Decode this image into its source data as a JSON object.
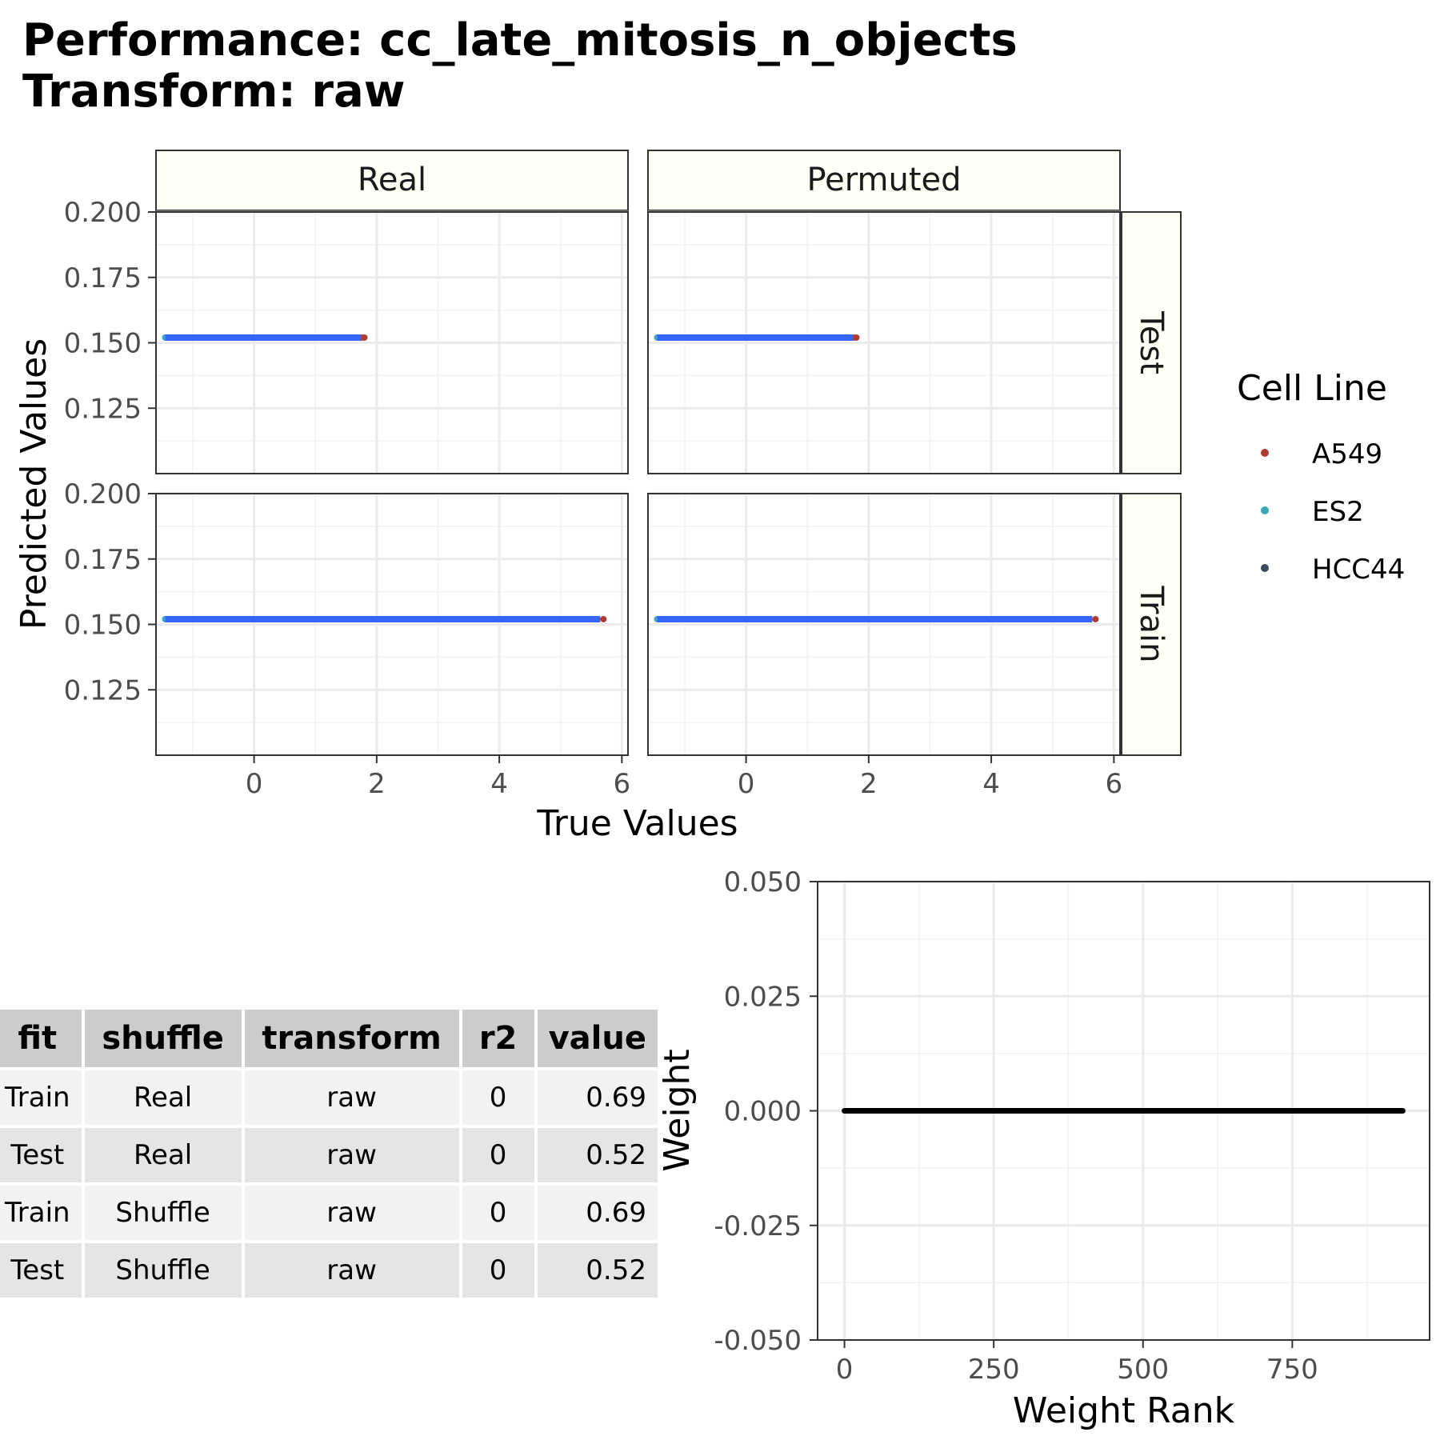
{
  "title": [
    "Performance: cc_late_mitosis_n_objects",
    "Transform: raw"
  ],
  "colors": {
    "A549": "#b03a2e",
    "ES2": "#3aa8b5",
    "HCC44": "#3d4a5c",
    "fit_line": "#3366ff"
  },
  "chart_data": [
    {
      "type": "scatter",
      "facets": {
        "columns": [
          "Real",
          "Permuted"
        ],
        "rows": [
          "Test",
          "Train"
        ]
      },
      "xlabel": "True Values",
      "ylabel": "Predicted Values",
      "xlim": [
        -1.6,
        6.1
      ],
      "ylim": [
        0.1,
        0.2
      ],
      "x_ticks": [
        0,
        2,
        4,
        6
      ],
      "y_ticks": [
        0.125,
        0.15,
        0.175,
        0.2
      ],
      "y_tick_labels": [
        "0.125",
        "0.150",
        "0.175",
        "0.200"
      ],
      "grid": true,
      "legend": {
        "title": "Cell Line",
        "entries": [
          "A549",
          "ES2",
          "HCC44"
        ],
        "position": "right"
      },
      "panels": [
        {
          "row": "Test",
          "col": "Real",
          "x_range": [
            -1.45,
            1.8
          ],
          "y": 0.152,
          "fit_line": {
            "x": [
              -1.45,
              1.8
            ],
            "y": [
              0.152,
              0.152
            ]
          }
        },
        {
          "row": "Test",
          "col": "Permuted",
          "x_range": [
            -1.45,
            1.8
          ],
          "y": 0.152,
          "fit_line": {
            "x": [
              -1.45,
              1.8
            ],
            "y": [
              0.152,
              0.152
            ]
          }
        },
        {
          "row": "Train",
          "col": "Real",
          "x_range": [
            -1.45,
            5.7
          ],
          "y": 0.152,
          "fit_line": {
            "x": [
              -1.45,
              5.7
            ],
            "y": [
              0.152,
              0.152
            ]
          }
        },
        {
          "row": "Train",
          "col": "Permuted",
          "x_range": [
            -1.45,
            5.7
          ],
          "y": 0.152,
          "fit_line": {
            "x": [
              -1.45,
              5.7
            ],
            "y": [
              0.152,
              0.152
            ]
          }
        }
      ]
    },
    {
      "type": "table",
      "columns": [
        "fit",
        "shuffle",
        "transform",
        "r2",
        "value"
      ],
      "rows": [
        [
          "Train",
          "Real",
          "raw",
          "0",
          "0.69"
        ],
        [
          "Test",
          "Real",
          "raw",
          "0",
          "0.52"
        ],
        [
          "Train",
          "Shuffle",
          "raw",
          "0",
          "0.69"
        ],
        [
          "Test",
          "Shuffle",
          "raw",
          "0",
          "0.52"
        ]
      ]
    },
    {
      "type": "line",
      "xlabel": "Weight Rank",
      "ylabel": "Weight",
      "xlim": [
        -45,
        980
      ],
      "ylim": [
        -0.05,
        0.05
      ],
      "x_ticks": [
        0,
        250,
        500,
        750
      ],
      "y_ticks": [
        -0.05,
        -0.025,
        0,
        0.025,
        0.05
      ],
      "y_tick_labels": [
        "-0.050",
        "-0.025",
        "0.000",
        "0.025",
        "0.050"
      ],
      "grid": true,
      "series": [
        {
          "x": [
            0,
            935
          ],
          "y": [
            0,
            0
          ]
        }
      ]
    }
  ]
}
